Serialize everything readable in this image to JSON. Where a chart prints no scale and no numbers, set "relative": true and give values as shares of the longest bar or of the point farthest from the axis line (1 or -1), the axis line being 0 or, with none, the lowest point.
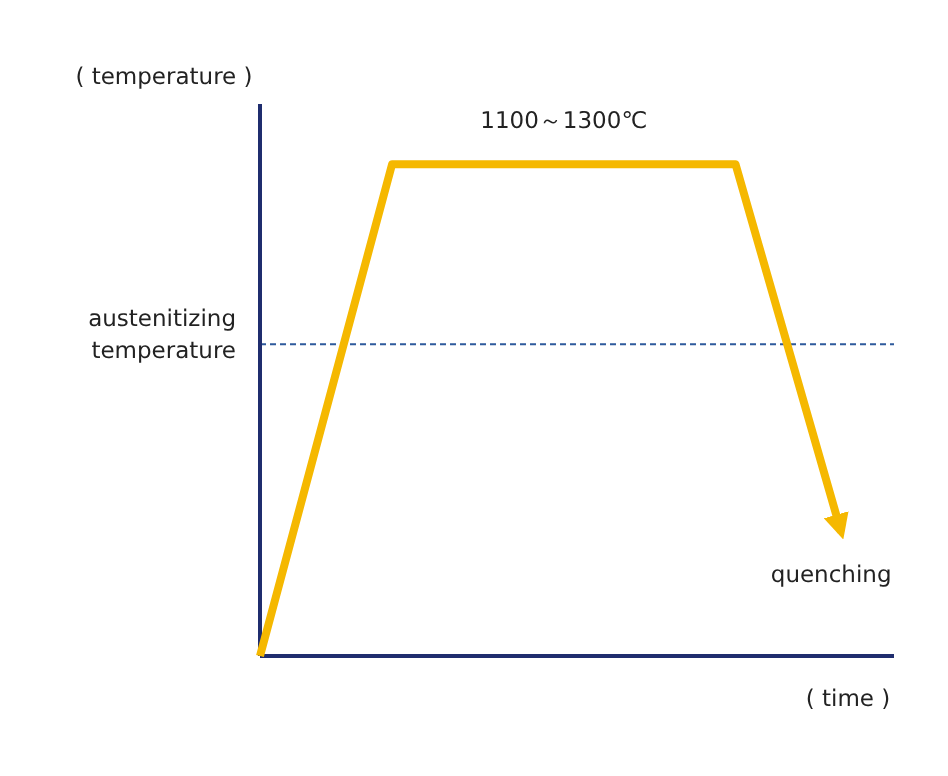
{
  "chart_data": {
    "type": "line",
    "relative": true,
    "xlabel": "( time )",
    "ylabel": "( temperature )",
    "categories": [
      null,
      null,
      null,
      null,
      null,
      null,
      null,
      null,
      null,
      null,
      null,
      null,
      null,
      null,
      null,
      null,
      null,
      null,
      null,
      null,
      null,
      null,
      null,
      null,
      null
    ],
    "series": [
      {
        "color": "#f5b800",
        "values": [
          0,
          null,
          null,
          null,
          null,
          1,
          null,
          null,
          null,
          null,
          null,
          null,
          null,
          null,
          null,
          null,
          null,
          null,
          1,
          null,
          null,
          null,
          0.252,
          null,
          null
        ]
      }
    ],
    "ref_lines": [
      {
        "axis": "y",
        "value": 0.634,
        "label": "austenitizing temperature",
        "color": "#2e5a9c",
        "line_style": "dashed"
      }
    ],
    "annotations": [
      "1100～1300℃",
      "quenching"
    ]
  }
}
